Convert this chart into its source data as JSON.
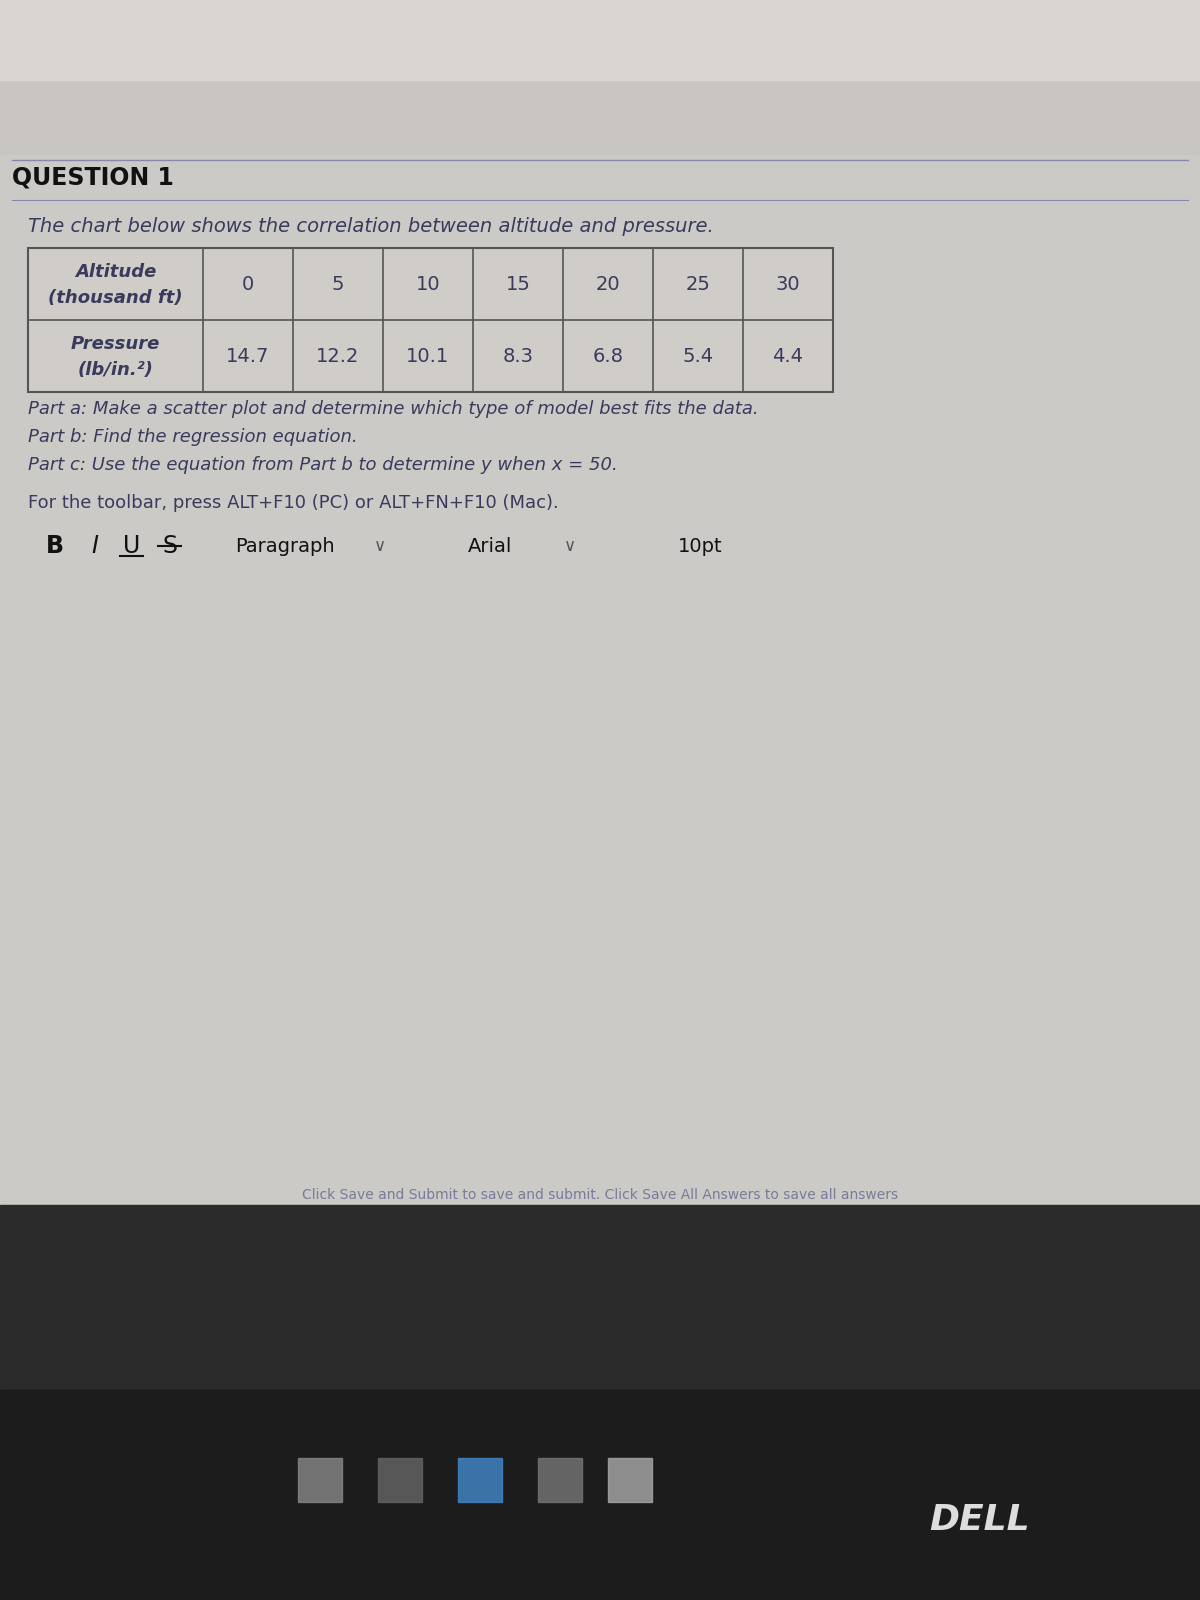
{
  "question_header": "QUESTION 1",
  "subtitle": "The chart below shows the correlation between altitude and pressure.",
  "table_row1_header": "Altitude\n(thousand ft)",
  "table_row1_values": [
    "0",
    "5",
    "10",
    "15",
    "20",
    "25",
    "30"
  ],
  "table_row2_header": "Pressure\n(lb/in.²)",
  "table_row2_values": [
    "14.7",
    "12.2",
    "10.1",
    "8.3",
    "6.8",
    "5.4",
    "4.4"
  ],
  "part_a": "Part a: Make a scatter plot and determine which type of model best fits the data.",
  "part_b": "Part b: Find the regression equation.",
  "part_c": "Part c: Use the equation from Part b to determine y when x = 50.",
  "toolbar_note": "For the toolbar, press ALT+F10 (PC) or ALT+FN+F10 (Mac).",
  "bold_text": "B",
  "italic_text": "I",
  "underline_text": "U",
  "strikethrough_text": "S",
  "paragraph_text": "Paragraph",
  "font_text": "Arial",
  "size_text": "10pt",
  "bg_color_top": "#d6d6d6",
  "bg_color_main": "#c8c8c8",
  "bg_color_bottom": "#1a1a1a",
  "text_color": "#3a3a5c",
  "header_color": "#1a1a1a",
  "table_bg": "#d0ccc8",
  "table_border": "#555555",
  "bottom_bar_color": "#2a2a2a",
  "taskbar_color": "#1c1c1c",
  "dell_text": "DELL"
}
